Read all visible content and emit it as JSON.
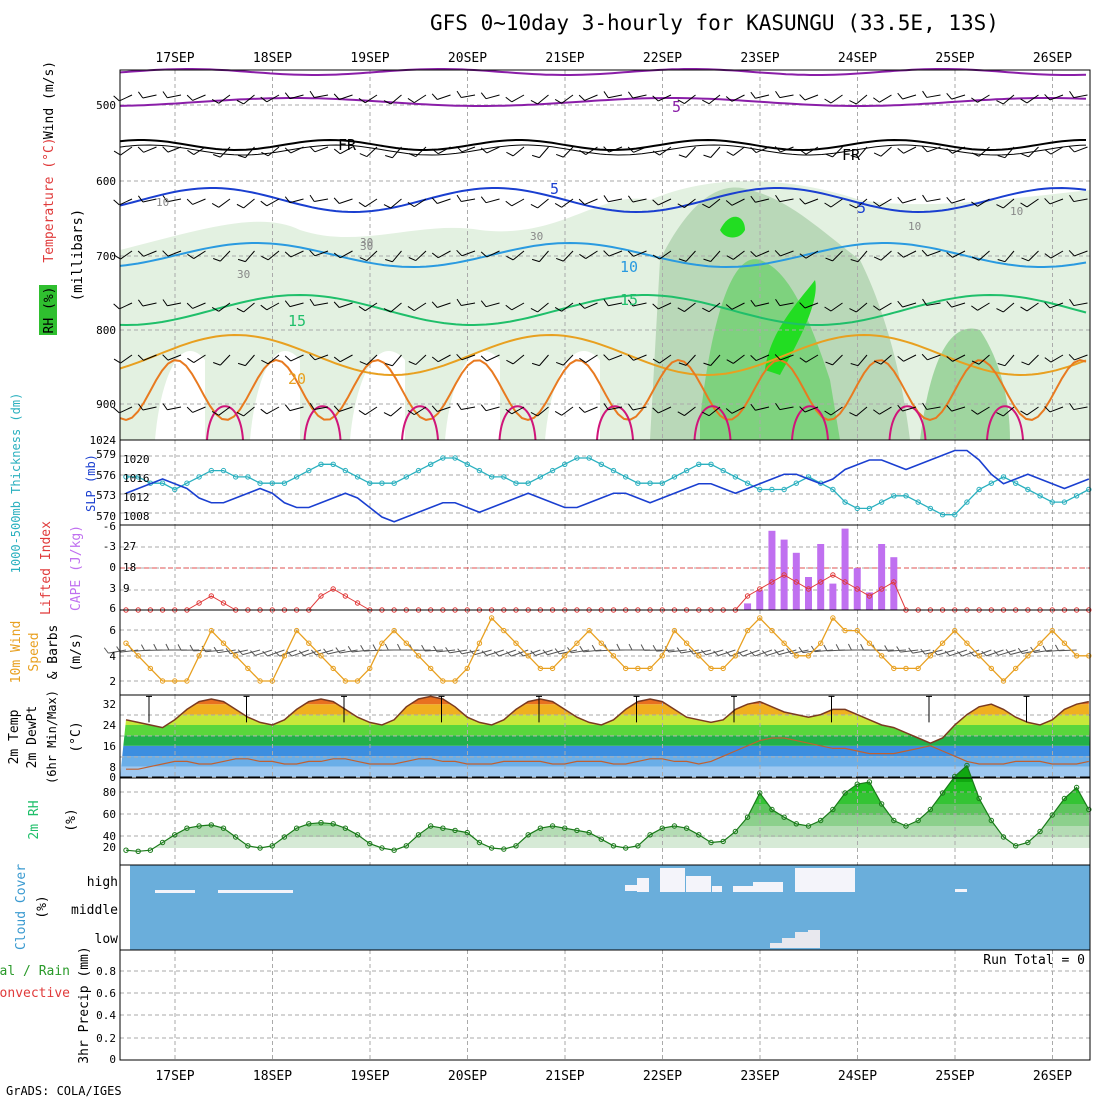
{
  "title": "GFS 0~10day 3-hourly for KASUNGU (33.5E, 13S)",
  "credit": "GrADS: COLA/IGES",
  "days": [
    "17SEP",
    "18SEP",
    "19SEP",
    "20SEP",
    "21SEP",
    "22SEP",
    "23SEP",
    "24SEP",
    "25SEP",
    "26SEP"
  ],
  "colors": {
    "purple": "#8a1ea8",
    "blue": "#1a3fd0",
    "cyan": "#2ab0bf",
    "green": "#1fbf6a",
    "orange": "#e8a020",
    "magenta": "#d0157a",
    "red": "#e03a3a",
    "lilac": "#c070f0",
    "sky": "#6aaedb"
  },
  "panels": {
    "upper": {
      "ylabel_wind": "Wind (m/s)",
      "ylabel_temp": "Temperature (°C)",
      "ylabel_rh": "RH (%)",
      "ylabel_p": "(millibars)",
      "levels": [
        "500",
        "600",
        "700",
        "800",
        "900",
        "1024"
      ],
      "contour_labels": [
        "5",
        "FR",
        "FR",
        "5",
        "5",
        "10",
        "15",
        "15",
        "20",
        "10",
        "30",
        "30",
        "30",
        "10",
        "10",
        "30"
      ]
    },
    "thick": {
      "left_label": "1000-500mb Thickness (dm)",
      "right_label": "SLP (mb)",
      "left_ticks": [
        "579",
        "576",
        "573",
        "570"
      ],
      "right_ticks": [
        "1020",
        "1016",
        "1012",
        "1008"
      ]
    },
    "cape": {
      "left_label": "Lifted Index",
      "right_label": "CAPE (J/kg)",
      "left_ticks": [
        "-6",
        "-3",
        "0",
        "3",
        "6"
      ],
      "right_ticks": [
        "27",
        "18",
        "9"
      ]
    },
    "wind": {
      "label1": "10m Wind",
      "label2": "Speed",
      "label3": "& Barbs",
      "unit": "(m/s)",
      "ticks": [
        "6",
        "4",
        "2"
      ]
    },
    "temp": {
      "label1": "2m Temp",
      "label2": "2m DewPt",
      "label3": "(6hr Min/Max)",
      "unit": "(°C)",
      "ticks": [
        "32",
        "24",
        "16",
        "8",
        "0"
      ]
    },
    "rh": {
      "label": "2m RH",
      "unit": "(%)",
      "ticks": [
        "80",
        "60",
        "40",
        "20"
      ]
    },
    "cloud": {
      "label": "Cloud Cover",
      "unit": "(%)",
      "ticks": [
        "high",
        "middle",
        "low"
      ]
    },
    "precip": {
      "label1": "Total / Rain",
      "label2": "Convective",
      "label3": "3hr Precip (mm)",
      "ticks": [
        "0.8",
        "0.6",
        "0.4",
        "0.2",
        "0"
      ],
      "run_total": "Run Total = 0"
    }
  },
  "chart_data": [
    {
      "type": "line",
      "name": "thickness_slp",
      "x_days_from_17SEP": "3-hourly steps",
      "series": [
        {
          "name": "1000-500mb Thickness",
          "values": [
            577,
            577,
            576,
            576,
            575,
            576,
            577,
            578,
            578,
            577,
            577,
            576,
            576,
            576,
            577,
            578,
            579,
            579,
            578,
            577,
            576,
            576,
            576,
            577,
            578,
            579,
            580,
            580,
            579,
            578,
            577,
            577,
            576,
            576,
            577,
            578,
            579,
            580,
            580,
            579,
            578,
            577,
            576,
            576,
            576,
            577,
            578,
            579,
            579,
            578,
            577,
            576,
            575,
            575,
            575,
            576,
            577,
            576,
            575,
            573,
            572,
            572,
            573,
            574,
            574,
            573,
            572,
            571,
            571,
            573,
            575,
            576,
            577,
            576,
            575,
            574,
            573,
            573,
            574,
            575,
            576,
            576,
            575,
            575,
            575
          ]
        },
        {
          "name": "SLP",
          "values": [
            1013,
            1014,
            1015,
            1016,
            1015,
            1014,
            1012,
            1011,
            1011,
            1012,
            1013,
            1014,
            1013,
            1011,
            1010,
            1010,
            1011,
            1012,
            1013,
            1012,
            1010,
            1008,
            1007,
            1008,
            1009,
            1010,
            1011,
            1011,
            1010,
            1009,
            1010,
            1011,
            1012,
            1013,
            1012,
            1011,
            1010,
            1010,
            1011,
            1012,
            1013,
            1013,
            1012,
            1011,
            1012,
            1013,
            1014,
            1015,
            1015,
            1014,
            1013,
            1014,
            1015,
            1016,
            1017,
            1017,
            1016,
            1015,
            1016,
            1018,
            1019,
            1020,
            1020,
            1019,
            1018,
            1019,
            1020,
            1021,
            1022,
            1022,
            1020,
            1017,
            1015,
            1016,
            1017,
            1016,
            1015,
            1014,
            1015,
            1016,
            1017,
            1018,
            1017,
            1016,
            1017
          ]
        }
      ]
    },
    {
      "type": "bar",
      "name": "CAPE",
      "values_by_step": {
        "51": 3,
        "52": 9,
        "53": 36,
        "54": 32,
        "55": 26,
        "56": 15,
        "57": 30,
        "58": 12,
        "59": 37,
        "60": 19,
        "61": 8,
        "62": 30,
        "63": 24
      }
    },
    {
      "type": "line",
      "name": "Lifted Index",
      "values": [
        6,
        6,
        6,
        6,
        6,
        6,
        5,
        4,
        5,
        6,
        6,
        6,
        6,
        6,
        6,
        6,
        4,
        3,
        4,
        5,
        6,
        6,
        6,
        6,
        6,
        6,
        6,
        6,
        6,
        6,
        6,
        6,
        6,
        6,
        6,
        6,
        6,
        6,
        6,
        6,
        6,
        6,
        6,
        6,
        6,
        6,
        6,
        6,
        6,
        6,
        6,
        4,
        3,
        2,
        1,
        2,
        3,
        2,
        1,
        2,
        3,
        4,
        3,
        2,
        6,
        6,
        6,
        6,
        6,
        6,
        6,
        6,
        6,
        6,
        6,
        6,
        6,
        6,
        6,
        6,
        6,
        6,
        6,
        5,
        3
      ]
    },
    {
      "type": "line",
      "name": "10m Wind Speed",
      "values": [
        5,
        4,
        3,
        2,
        2,
        2,
        4,
        6,
        5,
        4,
        3,
        2,
        2,
        4,
        6,
        5,
        4,
        3,
        2,
        2,
        3,
        5,
        6,
        5,
        4,
        3,
        2,
        2,
        3,
        5,
        7,
        6,
        5,
        4,
        3,
        3,
        4,
        5,
        6,
        5,
        4,
        3,
        3,
        3,
        4,
        6,
        5,
        4,
        3,
        3,
        4,
        6,
        7,
        6,
        5,
        4,
        4,
        5,
        7,
        6,
        6,
        5,
        4,
        3,
        3,
        3,
        4,
        5,
        6,
        5,
        4,
        3,
        2,
        3,
        4,
        5,
        6,
        5,
        4,
        4,
        4,
        5,
        6,
        5,
        6
      ]
    },
    {
      "type": "line",
      "name": "2m Temp",
      "values": [
        22,
        21,
        20,
        19,
        22,
        26,
        29,
        30,
        29,
        26,
        23,
        21,
        20,
        22,
        26,
        29,
        30,
        29,
        26,
        23,
        21,
        20,
        22,
        27,
        30,
        31,
        30,
        27,
        23,
        21,
        20,
        22,
        26,
        29,
        30,
        29,
        26,
        23,
        21,
        20,
        22,
        26,
        29,
        30,
        29,
        26,
        23,
        22,
        21,
        22,
        26,
        28,
        29,
        27,
        25,
        24,
        23,
        24,
        26,
        26,
        24,
        22,
        20,
        19,
        17,
        15,
        13,
        15,
        20,
        24,
        27,
        28,
        26,
        23,
        21,
        20,
        22,
        26,
        28,
        29,
        27,
        24,
        22,
        21,
        23
      ]
    },
    {
      "type": "line",
      "name": "2m DewPt",
      "values": [
        3,
        3,
        4,
        5,
        6,
        6,
        5,
        5,
        6,
        7,
        7,
        6,
        6,
        5,
        5,
        6,
        6,
        7,
        7,
        6,
        5,
        5,
        5,
        6,
        7,
        7,
        6,
        6,
        5,
        5,
        5,
        6,
        6,
        6,
        6,
        5,
        5,
        6,
        6,
        6,
        5,
        5,
        6,
        7,
        7,
        6,
        6,
        5,
        6,
        8,
        10,
        12,
        14,
        15,
        15,
        14,
        13,
        12,
        11,
        11,
        10,
        9,
        9,
        9,
        10,
        11,
        12,
        10,
        8,
        6,
        5,
        5,
        5,
        6,
        6,
        6,
        5,
        5,
        5,
        6,
        6,
        5,
        5,
        5,
        6
      ]
    },
    {
      "type": "area",
      "name": "2m RH",
      "values": [
        18,
        17,
        18,
        25,
        32,
        38,
        40,
        41,
        38,
        30,
        22,
        20,
        22,
        30,
        38,
        42,
        43,
        42,
        38,
        32,
        24,
        20,
        18,
        22,
        32,
        40,
        38,
        36,
        34,
        25,
        20,
        19,
        22,
        32,
        38,
        40,
        38,
        36,
        34,
        28,
        22,
        20,
        22,
        32,
        38,
        40,
        38,
        32,
        25,
        26,
        35,
        48,
        70,
        55,
        48,
        42,
        40,
        45,
        55,
        70,
        78,
        80,
        60,
        45,
        40,
        45,
        55,
        70,
        85,
        95,
        65,
        45,
        30,
        22,
        25,
        35,
        50,
        65,
        75,
        55,
        40,
        35,
        38,
        42,
        47
      ]
    },
    {
      "type": "table",
      "name": "Cloud Cover",
      "high_blocks": "visible at 17SEP, 18SEP, 22SEP–24SEP",
      "low_blocks": "23SEP"
    },
    {
      "type": "bar",
      "name": "3hr Precip",
      "values": [],
      "ylim": [
        0,
        0.9
      ]
    }
  ]
}
